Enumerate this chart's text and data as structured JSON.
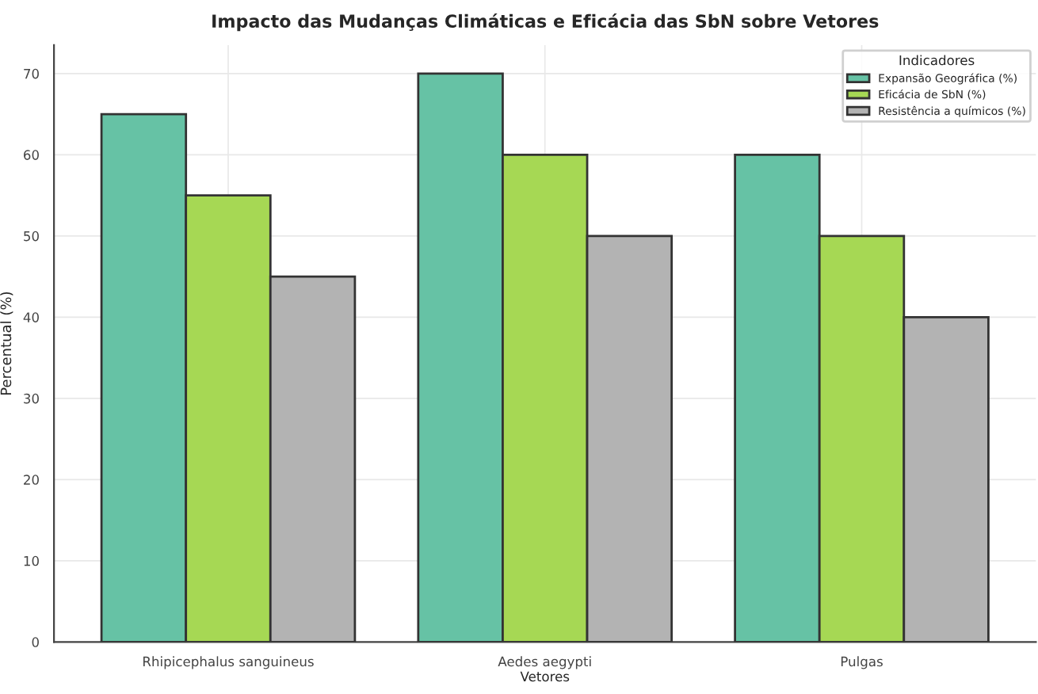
{
  "chart_data": {
    "type": "bar",
    "title": "Impacto das Mudanças Climáticas e Eficácia das SbN sobre Vetores",
    "xlabel": "Vetores",
    "ylabel": "Percentual (%)",
    "legend_title": "Indicadores",
    "categories": [
      "Rhipicephalus sanguineus",
      "Aedes aegypti",
      "Pulgas"
    ],
    "series": [
      {
        "name": "Expansão Geográfica (%)",
        "color": "#66c2a5",
        "values": [
          65,
          70,
          60
        ]
      },
      {
        "name": "Eficácia de SbN (%)",
        "color": "#a6d854",
        "values": [
          55,
          60,
          50
        ]
      },
      {
        "name": "Resistência a químicos (%)",
        "color": "#b3b3b3",
        "values": [
          45,
          50,
          40
        ]
      }
    ],
    "ylim": [
      0,
      73.5
    ],
    "yticks": [
      0,
      10,
      20,
      30,
      40,
      50,
      60,
      70
    ],
    "grid": true,
    "legend": "top right"
  }
}
